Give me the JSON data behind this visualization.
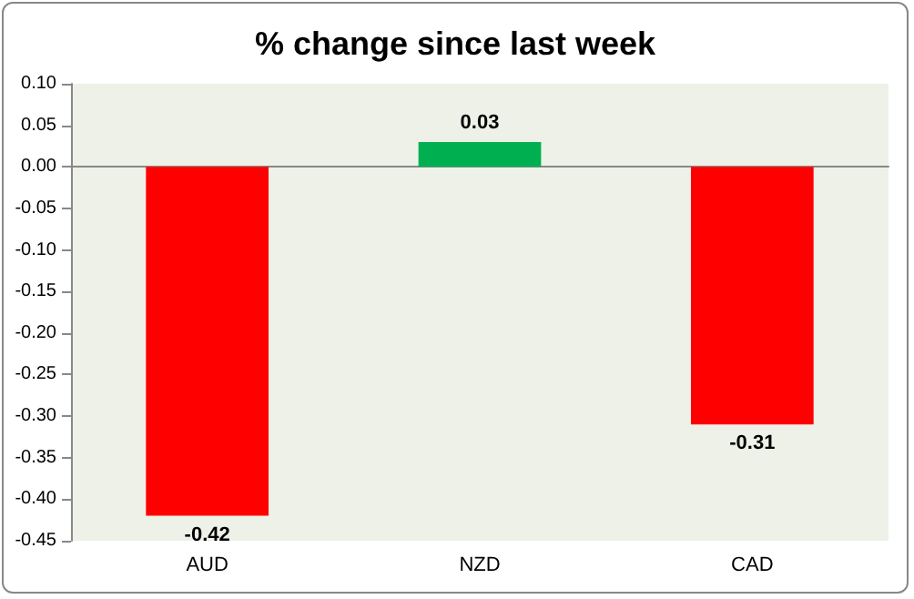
{
  "chart_data": {
    "type": "bar",
    "title": "% change since last week",
    "categories": [
      "AUD",
      "NZD",
      "CAD"
    ],
    "values": [
      -0.42,
      0.03,
      -0.31
    ],
    "colors": [
      "#ff0000",
      "#00b050",
      "#ff0000"
    ],
    "ylim": [
      -0.45,
      0.1
    ],
    "yticks": [
      {
        "value": -0.45,
        "label": "-0.45"
      },
      {
        "value": -0.4,
        "label": "-0.40"
      },
      {
        "value": -0.35,
        "label": "-0.35"
      },
      {
        "value": -0.3,
        "label": "-0.30"
      },
      {
        "value": -0.25,
        "label": "-0.25"
      },
      {
        "value": -0.2,
        "label": "-0.20"
      },
      {
        "value": -0.15,
        "label": "-0.15"
      },
      {
        "value": -0.1,
        "label": "-0.10"
      },
      {
        "value": -0.05,
        "label": "-0.05"
      },
      {
        "value": 0,
        "label": "0.00"
      },
      {
        "value": 0.05,
        "label": "0.05"
      },
      {
        "value": 0.1,
        "label": "0.10"
      }
    ],
    "data_labels": true
  }
}
